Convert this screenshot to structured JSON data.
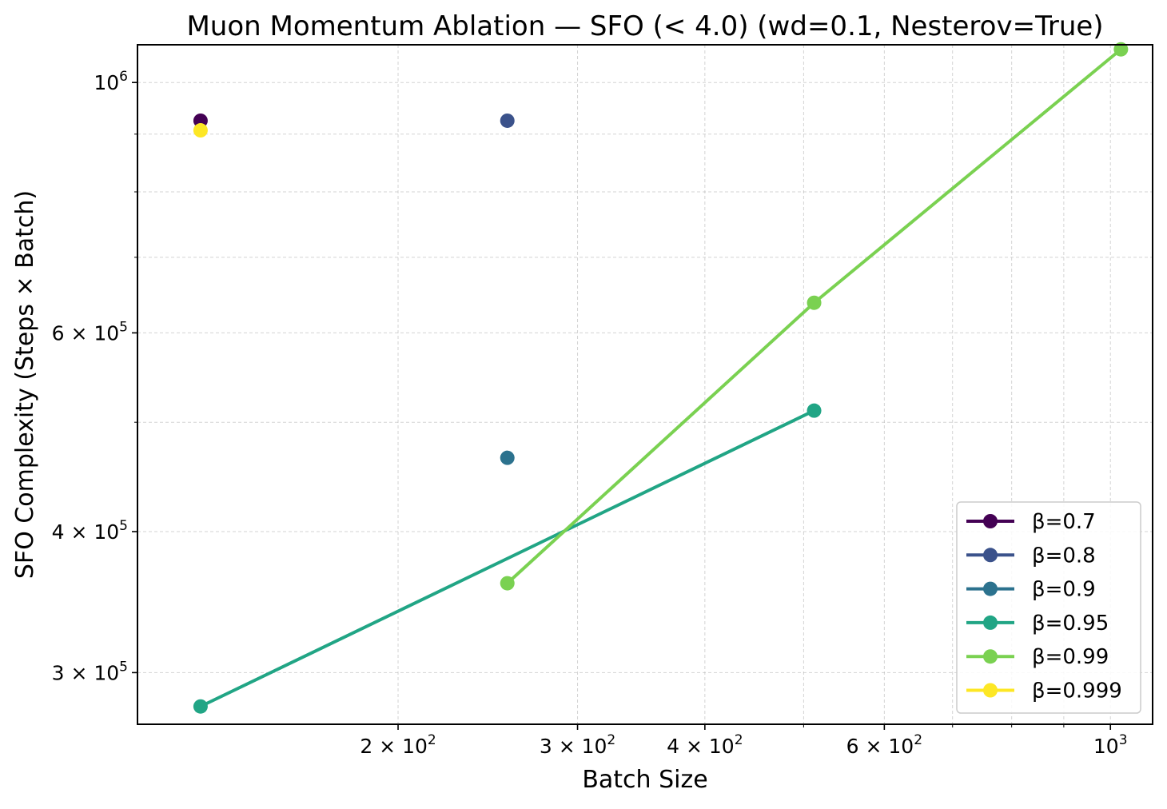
{
  "chart_data": {
    "type": "line",
    "title": "Muon Momentum Ablation — SFO (< 4.0)  (wd=0.1, Nesterov=True)",
    "xlabel": "Batch Size",
    "ylabel": "SFO Complexity (Steps × Batch)",
    "x_scale": "log",
    "y_scale": "log",
    "xlim": [
      111,
      1100
    ],
    "ylim": [
      270000,
      1080000
    ],
    "grid": true,
    "legend_position": "lower right",
    "x_ticks": [
      {
        "value": 200,
        "base": "2 × 10",
        "exp": "2"
      },
      {
        "value": 300,
        "base": "3 × 10",
        "exp": "2"
      },
      {
        "value": 400,
        "base": "4 × 10",
        "exp": "2"
      },
      {
        "value": 600,
        "base": "6 × 10",
        "exp": "2"
      },
      {
        "value": 1000,
        "base": "10",
        "exp": "3"
      }
    ],
    "x_minor": [
      500,
      700,
      800,
      900
    ],
    "y_ticks": [
      {
        "value": 300000,
        "base": "3 × 10",
        "exp": "5"
      },
      {
        "value": 400000,
        "base": "4 × 10",
        "exp": "5"
      },
      {
        "value": 600000,
        "base": "6 × 10",
        "exp": "5"
      },
      {
        "value": 1000000,
        "base": "10",
        "exp": "6"
      }
    ],
    "y_minor": [
      500000,
      700000,
      800000,
      900000
    ],
    "series": [
      {
        "name": "β=0.7",
        "color": "#440154",
        "x": [
          128
        ],
        "y": [
          925000
        ]
      },
      {
        "name": "β=0.8",
        "color": "#3b528b",
        "x": [
          256
        ],
        "y": [
          925000
        ]
      },
      {
        "name": "β=0.9",
        "color": "#2c728e",
        "x": [
          256
        ],
        "y": [
          465000
        ]
      },
      {
        "name": "β=0.95",
        "color": "#21a585",
        "x": [
          128,
          512
        ],
        "y": [
          280000,
          512000
        ]
      },
      {
        "name": "β=0.99",
        "color": "#7ad151",
        "x": [
          256,
          512,
          1024
        ],
        "y": [
          360000,
          638000,
          1070000
        ]
      },
      {
        "name": "β=0.999",
        "color": "#fde725",
        "x": [
          128
        ],
        "y": [
          907000
        ]
      }
    ]
  }
}
